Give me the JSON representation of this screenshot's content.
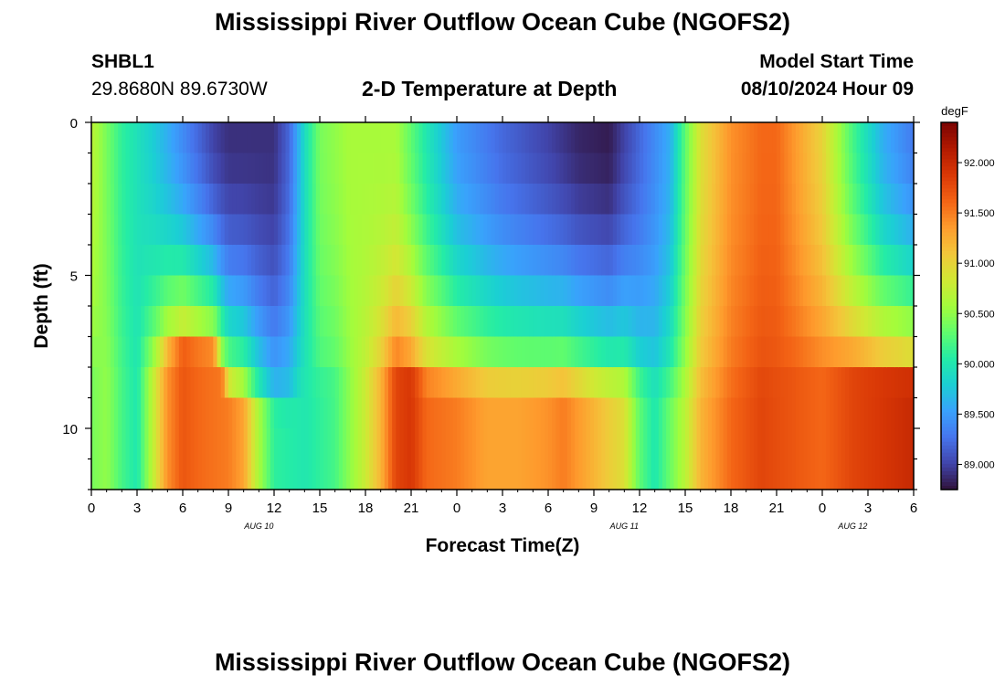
{
  "page": {
    "title": "Mississippi River Outflow Ocean Cube (NGOFS2)",
    "station_id": "SHBL1",
    "station_coords": "29.8680N  89.6730W",
    "subtitle": "2-D Temperature at Depth",
    "model_start_label": "Model Start Time",
    "model_start_value": "08/10/2024 Hour 09",
    "footer_title": "Mississippi River Outflow Ocean Cube (NGOFS2)"
  },
  "chart_data": {
    "type": "heatmap",
    "title": "2-D Temperature at Depth",
    "xlabel": "Forecast Time(Z)",
    "ylabel": "Depth (ft)",
    "x_tick_labels": [
      "0",
      "3",
      "6",
      "9",
      "12",
      "15",
      "18",
      "21",
      "0",
      "3",
      "6",
      "9",
      "12",
      "15",
      "18",
      "21",
      "0",
      "3",
      "6"
    ],
    "x_date_labels": [
      {
        "label": "AUG 10",
        "hour_index": 11
      },
      {
        "label": "AUG 11",
        "hour_index": 35
      },
      {
        "label": "AUG 12",
        "hour_index": 50
      }
    ],
    "x_hours_start": 0,
    "x_hours_end": 54,
    "y_ticks": [
      0,
      5,
      10
    ],
    "ylim": [
      0,
      12
    ],
    "depth_levels_ft": [
      0.5,
      1.5,
      2.5,
      3.5,
      4.5,
      5.5,
      6.5,
      7.5,
      8.5,
      9.5,
      10.5,
      11.5
    ],
    "colorbar": {
      "unit": "degF",
      "min": 88.75,
      "max": 92.4,
      "ticks": [
        "92.000",
        "91.500",
        "91.000",
        "90.500",
        "90.000",
        "89.500",
        "89.000"
      ],
      "colormap": [
        "#30123b",
        "#4145ab",
        "#4675ed",
        "#39a2fc",
        "#1bcfd4",
        "#24eca6",
        "#61fc6c",
        "#a4fc3b",
        "#d1e834",
        "#f3c63a",
        "#fe9b2d",
        "#f36315",
        "#d93806",
        "#b11901",
        "#7a0402"
      ]
    },
    "temperature_model": {
      "description": "surface/upper-layer temperature by hour, then bottom-layer temperature by hour",
      "surface_keyframes": [
        [
          0,
          90.7
        ],
        [
          2,
          90.1
        ],
        [
          4,
          89.8
        ],
        [
          6,
          89.4
        ],
        [
          8,
          89.0
        ],
        [
          9,
          88.9
        ],
        [
          12,
          88.9
        ],
        [
          13,
          89.2
        ],
        [
          14,
          89.9
        ],
        [
          15,
          90.4
        ],
        [
          17,
          90.6
        ],
        [
          20,
          90.6
        ],
        [
          22,
          90.0
        ],
        [
          24,
          89.5
        ],
        [
          27,
          89.2
        ],
        [
          30,
          89.0
        ],
        [
          32,
          88.85
        ],
        [
          34,
          88.8
        ],
        [
          36,
          89.2
        ],
        [
          38,
          89.6
        ],
        [
          39,
          90.3
        ],
        [
          40,
          90.9
        ],
        [
          42,
          91.4
        ],
        [
          44,
          91.6
        ],
        [
          45,
          91.6
        ],
        [
          46,
          91.4
        ],
        [
          48,
          91.0
        ],
        [
          50,
          90.2
        ],
        [
          52,
          89.6
        ],
        [
          54,
          89.3
        ]
      ],
      "bottom_keyframes": [
        [
          0,
          90.4
        ],
        [
          1,
          90.5
        ],
        [
          2,
          90.2
        ],
        [
          3,
          90.0
        ],
        [
          4,
          90.7
        ],
        [
          5,
          91.4
        ],
        [
          6,
          91.7
        ],
        [
          7,
          91.6
        ],
        [
          9,
          91.5
        ],
        [
          10,
          91.3
        ],
        [
          11,
          90.6
        ],
        [
          12,
          90.1
        ],
        [
          14,
          90.0
        ],
        [
          16,
          90.2
        ],
        [
          18,
          90.8
        ],
        [
          19,
          91.2
        ],
        [
          20,
          91.8
        ],
        [
          21,
          91.9
        ],
        [
          22,
          91.6
        ],
        [
          24,
          91.5
        ],
        [
          26,
          91.3
        ],
        [
          28,
          91.3
        ],
        [
          30,
          91.4
        ],
        [
          31,
          91.5
        ],
        [
          33,
          91.2
        ],
        [
          35,
          90.9
        ],
        [
          36,
          90.3
        ],
        [
          37,
          90.0
        ],
        [
          39,
          90.7
        ],
        [
          40,
          91.2
        ],
        [
          42,
          91.6
        ],
        [
          44,
          91.8
        ],
        [
          46,
          91.7
        ],
        [
          48,
          91.6
        ],
        [
          50,
          91.8
        ],
        [
          52,
          91.9
        ],
        [
          54,
          92.0
        ]
      ],
      "thermocline_keyframes": [
        [
          0,
          6.8
        ],
        [
          4,
          6.8
        ],
        [
          5,
          6.5
        ],
        [
          6,
          6.2
        ],
        [
          8,
          6.3
        ],
        [
          9,
          7.8
        ],
        [
          13,
          8.3
        ],
        [
          14,
          7.6
        ],
        [
          16,
          7.2
        ],
        [
          19,
          7.0
        ],
        [
          20,
          6.9
        ],
        [
          22,
          7.4
        ],
        [
          24,
          7.5
        ],
        [
          33,
          7.6
        ],
        [
          37,
          7.5
        ],
        [
          38,
          7.7
        ],
        [
          39,
          7.7
        ],
        [
          42,
          7.7
        ],
        [
          45,
          7.3
        ],
        [
          46,
          6.9
        ],
        [
          50,
          7.0
        ],
        [
          54,
          7.2
        ]
      ]
    }
  }
}
